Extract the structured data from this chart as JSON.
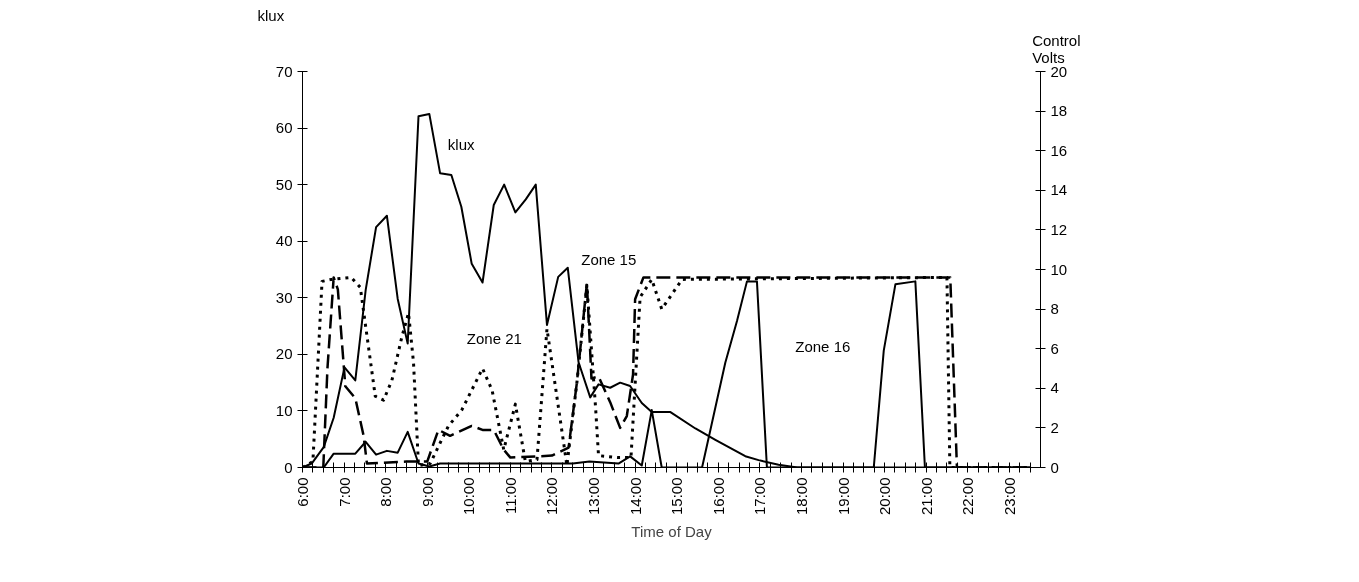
{
  "chart_data": {
    "type": "line",
    "xlabel": "Time of Day",
    "ylabel": "klux",
    "y2label": "Control Volts",
    "xlim": [
      6,
      23.75
    ],
    "xticks": [
      {
        "value": 6,
        "label": "6:00"
      },
      {
        "value": 6.25,
        "label": null
      },
      {
        "value": 6.5,
        "label": null
      },
      {
        "value": 6.75,
        "label": null
      },
      {
        "value": 7,
        "label": "7:00"
      },
      {
        "value": 7.25,
        "label": null
      },
      {
        "value": 7.5,
        "label": null
      },
      {
        "value": 7.75,
        "label": null
      },
      {
        "value": 8,
        "label": "8:00"
      },
      {
        "value": 8.25,
        "label": null
      },
      {
        "value": 8.5,
        "label": null
      },
      {
        "value": 8.75,
        "label": null
      },
      {
        "value": 9,
        "label": "9:00"
      },
      {
        "value": 9.25,
        "label": null
      },
      {
        "value": 9.5,
        "label": null
      },
      {
        "value": 9.75,
        "label": null
      },
      {
        "value": 10,
        "label": "10:00"
      },
      {
        "value": 10.25,
        "label": null
      },
      {
        "value": 10.5,
        "label": null
      },
      {
        "value": 10.75,
        "label": null
      },
      {
        "value": 11,
        "label": "11:00"
      },
      {
        "value": 11.25,
        "label": null
      },
      {
        "value": 11.5,
        "label": null
      },
      {
        "value": 11.75,
        "label": null
      },
      {
        "value": 12,
        "label": "12:00"
      },
      {
        "value": 12.25,
        "label": null
      },
      {
        "value": 12.5,
        "label": null
      },
      {
        "value": 12.75,
        "label": null
      },
      {
        "value": 13,
        "label": "13:00"
      },
      {
        "value": 13.25,
        "label": null
      },
      {
        "value": 13.5,
        "label": null
      },
      {
        "value": 13.75,
        "label": null
      },
      {
        "value": 14,
        "label": "14:00"
      },
      {
        "value": 14.25,
        "label": null
      },
      {
        "value": 14.5,
        "label": null
      },
      {
        "value": 14.75,
        "label": null
      },
      {
        "value": 15,
        "label": "15:00"
      },
      {
        "value": 15.25,
        "label": null
      },
      {
        "value": 15.5,
        "label": null
      },
      {
        "value": 15.75,
        "label": null
      },
      {
        "value": 16,
        "label": "16:00"
      },
      {
        "value": 16.25,
        "label": null
      },
      {
        "value": 16.5,
        "label": null
      },
      {
        "value": 16.75,
        "label": null
      },
      {
        "value": 17,
        "label": "17:00"
      },
      {
        "value": 17.25,
        "label": null
      },
      {
        "value": 17.5,
        "label": null
      },
      {
        "value": 17.75,
        "label": null
      },
      {
        "value": 18,
        "label": "18:00"
      },
      {
        "value": 18.25,
        "label": null
      },
      {
        "value": 18.5,
        "label": null
      },
      {
        "value": 18.75,
        "label": null
      },
      {
        "value": 19,
        "label": "19:00"
      },
      {
        "value": 19.25,
        "label": null
      },
      {
        "value": 19.5,
        "label": null
      },
      {
        "value": 19.75,
        "label": null
      },
      {
        "value": 20,
        "label": "20:00"
      },
      {
        "value": 20.25,
        "label": null
      },
      {
        "value": 20.5,
        "label": null
      },
      {
        "value": 20.75,
        "label": null
      },
      {
        "value": 21,
        "label": "21:00"
      },
      {
        "value": 21.25,
        "label": null
      },
      {
        "value": 21.5,
        "label": null
      },
      {
        "value": 21.75,
        "label": null
      },
      {
        "value": 22,
        "label": "22:00"
      },
      {
        "value": 22.25,
        "label": null
      },
      {
        "value": 22.5,
        "label": null
      },
      {
        "value": 22.75,
        "label": null
      },
      {
        "value": 23,
        "label": "23:00"
      },
      {
        "value": 23.25,
        "label": null
      },
      {
        "value": 23.5,
        "label": null
      }
    ],
    "ylim": [
      0,
      70
    ],
    "yticks": [
      0,
      10,
      20,
      30,
      40,
      50,
      60,
      70
    ],
    "y2lim": [
      0,
      20
    ],
    "y2ticks": [
      0,
      2,
      4,
      6,
      8,
      10,
      12,
      14,
      16,
      18,
      20
    ],
    "grid": false,
    "legend": false,
    "series": [
      {
        "name": "klux",
        "color": "#000000",
        "line_style": "solid",
        "x": [
          6.0,
          6.22,
          6.51,
          6.75,
          7.01,
          7.27,
          7.52,
          7.77,
          8.03,
          8.29,
          8.53,
          8.79,
          9.05,
          9.31,
          9.58,
          9.82,
          10.07,
          10.33,
          10.6,
          10.85,
          11.12,
          11.37,
          11.61,
          11.88,
          12.15,
          12.38,
          12.64,
          12.92,
          13.12,
          13.4,
          13.64,
          13.88,
          14.16,
          14.4,
          14.85,
          15.45,
          15.93,
          16.65,
          16.97,
          17.45,
          17.9,
          23.5
        ],
        "values": [
          0,
          0.7,
          3.6,
          8.8,
          17.7,
          15.4,
          31.4,
          42.5,
          44.5,
          29.8,
          21.9,
          62.1,
          62.5,
          52,
          51.7,
          46.1,
          36,
          32.7,
          46.4,
          50,
          45.1,
          47.4,
          50,
          25.2,
          33.7,
          35.3,
          18.6,
          12.4,
          14.7,
          14.1,
          15,
          14.4,
          11.4,
          9.8,
          9.8,
          6.9,
          4.9,
          2,
          1.3,
          0.5,
          0,
          0
        ]
      },
      {
        "name": "Zone 15",
        "color": "#000000",
        "line_style": "dashed",
        "axis": "y2",
        "x": [
          6.0,
          6.5,
          6.6,
          6.75,
          6.85,
          7.03,
          7.27,
          7.47,
          7.55,
          8.5,
          9.0,
          9.27,
          9.55,
          10.07,
          10.33,
          10.6,
          10.84,
          11.0,
          12.0,
          12.4,
          12.6,
          12.84,
          12.95,
          13.12,
          13.4,
          13.64,
          13.8,
          13.95,
          14.0,
          14.2,
          21.58,
          21.74,
          23.5
        ],
        "values": [
          0,
          0,
          5,
          9.6,
          9,
          4.1,
          3.5,
          1.6,
          0.2,
          0.3,
          0.3,
          1.9,
          1.6,
          2.1,
          1.9,
          1.9,
          0.9,
          0.5,
          0.6,
          1,
          4.3,
          9.3,
          4.5,
          4.6,
          3.3,
          2,
          2.6,
          4.7,
          8.5,
          9.6,
          9.6,
          0,
          0
        ]
      },
      {
        "name": "Zone 21",
        "color": "#000000",
        "line_style": "dotted",
        "axis": "y2",
        "x": [
          6.0,
          6.25,
          6.47,
          6.7,
          7.17,
          7.39,
          7.75,
          7.95,
          8.15,
          8.39,
          8.55,
          8.67,
          8.79,
          9.07,
          9.51,
          9.83,
          10.33,
          10.56,
          10.84,
          11.12,
          11.36,
          11.64,
          11.88,
          12.36,
          12.6,
          12.84,
          13.05,
          13.12,
          13.6,
          13.9,
          14.0,
          14.12,
          14.4,
          14.64,
          15.13,
          21.5,
          21.57,
          23.5
        ],
        "values": [
          0,
          0.3,
          9.4,
          9.5,
          9.6,
          9.1,
          3.6,
          3.4,
          4.4,
          6.6,
          7.8,
          5.3,
          0.1,
          0.2,
          2.1,
          2.9,
          5,
          3.9,
          0.9,
          3.2,
          0.3,
          0.4,
          7,
          0.1,
          4.3,
          9.2,
          3,
          0.6,
          0.5,
          0.5,
          4.2,
          8.6,
          9.5,
          8,
          9.5,
          9.6,
          0,
          0
        ]
      },
      {
        "name": "Zone 16",
        "color": "#000000",
        "line_style": "solid",
        "axis": "y2",
        "x": [
          6.0,
          6.51,
          6.75,
          7.27,
          7.52,
          7.77,
          8.03,
          8.29,
          8.53,
          8.79,
          9.05,
          9.31,
          12.5,
          12.9,
          13.6,
          13.88,
          14.16,
          14.4,
          14.64,
          15.61,
          16.17,
          16.45,
          16.69,
          16.93,
          17.17,
          19.74,
          19.98,
          20.26,
          20.74,
          20.97,
          23.5
        ],
        "values": [
          0,
          0,
          0.7,
          0.7,
          1.3,
          0.65,
          0.84,
          0.75,
          1.8,
          0.2,
          0.05,
          0.2,
          0.2,
          0.3,
          0.2,
          0.56,
          0.1,
          2.9,
          0,
          0,
          5.3,
          7.4,
          9.4,
          9.4,
          0,
          0,
          5.9,
          9.25,
          9.4,
          0,
          0
        ]
      }
    ]
  }
}
